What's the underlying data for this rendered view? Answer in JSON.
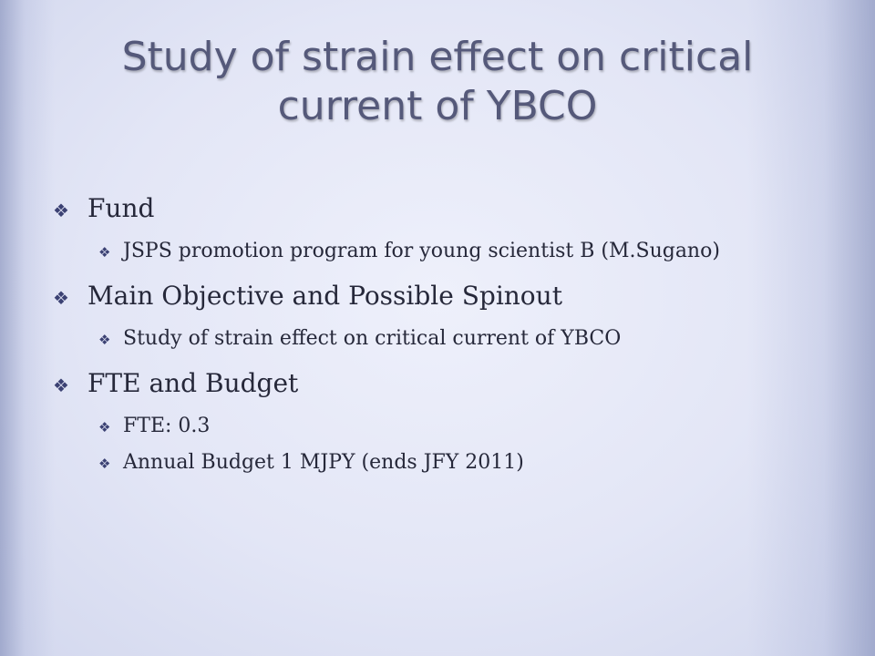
{
  "slide": {
    "title": "Study of strain effect on critical current of YBCO",
    "bullet_glyph": "❖",
    "sections": [
      {
        "heading": "Fund",
        "items": [
          "JSPS promotion program for young scientist B (M.Sugano)"
        ]
      },
      {
        "heading": "Main Objective and Possible Spinout",
        "items": [
          "Study of strain effect on critical current of YBCO"
        ]
      },
      {
        "heading": "FTE and Budget",
        "items": [
          "FTE: 0.3",
          "Annual Budget 1 MJPY (ends JFY 2011)"
        ]
      }
    ]
  }
}
